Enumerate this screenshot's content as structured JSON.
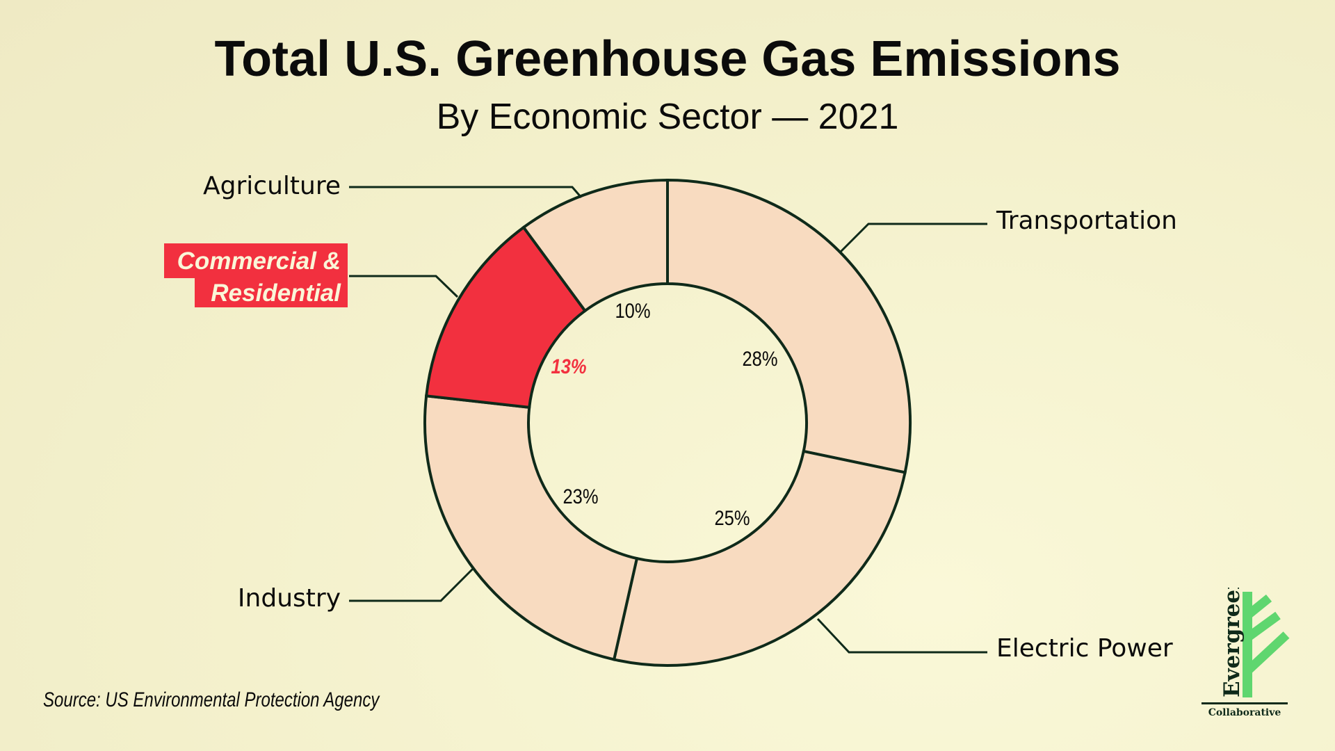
{
  "chart_data": {
    "type": "pie",
    "variant": "donut",
    "title": "Total U.S. Greenhouse Gas Emissions",
    "subtitle": "By Economic Sector — 2021",
    "categories": [
      "Transportation",
      "Electric Power",
      "Industry",
      "Commercial & Residential",
      "Agriculture"
    ],
    "values": [
      28,
      25,
      23,
      13,
      10
    ],
    "value_labels": [
      "28%",
      "25%",
      "23%",
      "13%",
      "10%"
    ],
    "highlighted": "Commercial & Residential",
    "colors": {
      "default": "#f8dbc0",
      "highlight": "#f2303f",
      "stroke": "#0f2a1a",
      "highlight_text": "#f2303f"
    },
    "commercial_label_lines": [
      "Commercial &",
      "Residential"
    ],
    "source": "Source: US Environmental Protection Agency"
  },
  "logo": {
    "name": "Evergreen",
    "sub": "Collaborative",
    "color": "#5fd66f"
  }
}
